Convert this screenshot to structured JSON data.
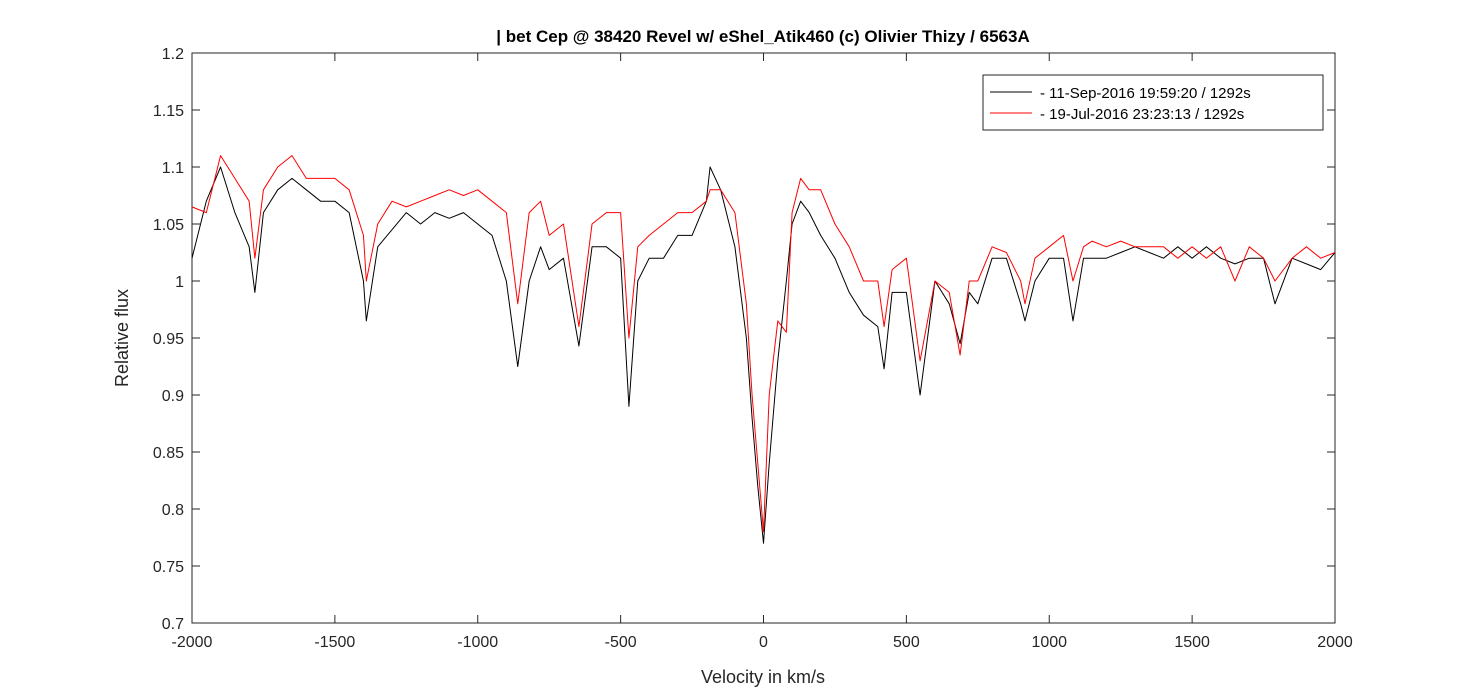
{
  "chart_data": {
    "type": "line",
    "title": "| bet Cep @ 38420 Revel w/ eShel_Atik460 (c) Olivier Thizy / 6563A",
    "x_label": "Velocity in km/s",
    "y_label": "Relative flux",
    "xlim": [
      -2000,
      2000
    ],
    "ylim": [
      0.7,
      1.2
    ],
    "xticks": [
      -2000,
      -1500,
      -1000,
      -500,
      0,
      500,
      1000,
      1500,
      2000
    ],
    "yticks": [
      0.7,
      0.75,
      0.8,
      0.85,
      0.9,
      0.95,
      1,
      1.05,
      1.1,
      1.15,
      1.2
    ],
    "grid": false,
    "legend": "top-right",
    "x": [
      -2000,
      -1950,
      -1900,
      -1850,
      -1800,
      -1780,
      -1750,
      -1700,
      -1650,
      -1600,
      -1550,
      -1500,
      -1450,
      -1400,
      -1390,
      -1350,
      -1300,
      -1250,
      -1200,
      -1150,
      -1100,
      -1050,
      -1000,
      -950,
      -900,
      -860,
      -820,
      -780,
      -750,
      -700,
      -646,
      -600,
      -550,
      -500,
      -471,
      -440,
      -400,
      -350,
      -300,
      -250,
      -200,
      -187,
      -150,
      -100,
      -60,
      -40,
      -20,
      0,
      20,
      50,
      80,
      100,
      130,
      160,
      200,
      250,
      300,
      350,
      400,
      422,
      450,
      500,
      548,
      600,
      650,
      688,
      720,
      750,
      800,
      850,
      900,
      915,
      950,
      1000,
      1050,
      1083,
      1120,
      1150,
      1200,
      1250,
      1300,
      1350,
      1400,
      1450,
      1500,
      1550,
      1600,
      1650,
      1700,
      1750,
      1790,
      1850,
      1900,
      1950,
      2000
    ],
    "series": [
      {
        "name": "- 11-Sep-2016 19:59:20 / 1292s",
        "color": "#000000",
        "values": [
          1.02,
          1.07,
          1.1,
          1.06,
          1.03,
          0.99,
          1.06,
          1.08,
          1.09,
          1.08,
          1.07,
          1.07,
          1.06,
          1.0,
          0.965,
          1.03,
          1.045,
          1.06,
          1.05,
          1.06,
          1.055,
          1.06,
          1.05,
          1.04,
          1.0,
          0.925,
          1.0,
          1.03,
          1.01,
          1.02,
          0.943,
          1.03,
          1.03,
          1.02,
          0.89,
          1.0,
          1.02,
          1.02,
          1.04,
          1.04,
          1.07,
          1.1,
          1.08,
          1.03,
          0.95,
          0.88,
          0.82,
          0.77,
          0.84,
          0.93,
          1.0,
          1.05,
          1.07,
          1.06,
          1.04,
          1.02,
          0.99,
          0.97,
          0.96,
          0.923,
          0.99,
          0.99,
          0.9,
          1.0,
          0.98,
          0.945,
          0.99,
          0.98,
          1.02,
          1.02,
          0.98,
          0.965,
          1.0,
          1.02,
          1.02,
          0.965,
          1.02,
          1.02,
          1.02,
          1.025,
          1.03,
          1.025,
          1.02,
          1.03,
          1.02,
          1.03,
          1.02,
          1.015,
          1.02,
          1.02,
          0.98,
          1.02,
          1.015,
          1.01,
          1.025
        ]
      },
      {
        "name": "- 19-Jul-2016 23:23:13 / 1292s",
        "color": "#ff0000",
        "values": [
          1.065,
          1.06,
          1.11,
          1.09,
          1.07,
          1.02,
          1.08,
          1.1,
          1.11,
          1.09,
          1.09,
          1.09,
          1.08,
          1.04,
          1.0,
          1.05,
          1.07,
          1.065,
          1.07,
          1.075,
          1.08,
          1.075,
          1.08,
          1.07,
          1.06,
          0.98,
          1.06,
          1.07,
          1.04,
          1.05,
          0.96,
          1.05,
          1.06,
          1.06,
          0.95,
          1.03,
          1.04,
          1.05,
          1.06,
          1.06,
          1.07,
          1.08,
          1.08,
          1.06,
          0.98,
          0.9,
          0.84,
          0.78,
          0.9,
          0.965,
          0.955,
          1.06,
          1.09,
          1.08,
          1.08,
          1.05,
          1.03,
          1.0,
          1.0,
          0.96,
          1.01,
          1.02,
          0.93,
          1.0,
          0.99,
          0.935,
          1.0,
          1.0,
          1.03,
          1.025,
          1.0,
          0.98,
          1.02,
          1.03,
          1.04,
          1.0,
          1.03,
          1.035,
          1.03,
          1.035,
          1.03,
          1.03,
          1.03,
          1.02,
          1.03,
          1.02,
          1.03,
          1.0,
          1.03,
          1.02,
          1.0,
          1.02,
          1.03,
          1.02,
          1.025
        ]
      }
    ]
  }
}
